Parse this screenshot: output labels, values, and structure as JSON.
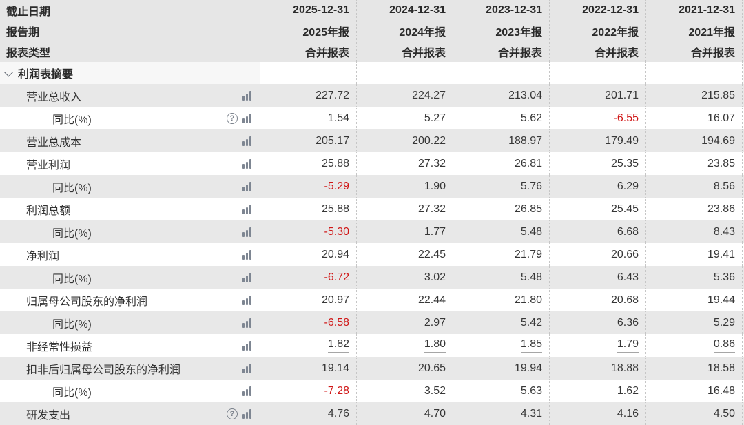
{
  "header": {
    "field_labels": [
      "截止日期",
      "报告期",
      "报表类型"
    ],
    "columns": [
      {
        "date": "2025-12-31",
        "period": "2025年报",
        "report_type": "合并报表"
      },
      {
        "date": "2024-12-31",
        "period": "2024年报",
        "report_type": "合并报表"
      },
      {
        "date": "2023-12-31",
        "period": "2023年报",
        "report_type": "合并报表"
      },
      {
        "date": "2022-12-31",
        "period": "2022年报",
        "report_type": "合并报表"
      },
      {
        "date": "2021-12-31",
        "period": "2021年报",
        "report_type": "合并报表"
      }
    ]
  },
  "section": {
    "title": "利润表摘要"
  },
  "icons": {
    "help_glyph": "?",
    "chart_icon": "bar-chart-icon",
    "collapse_icon": "chevron-down-icon"
  },
  "colors": {
    "negative_red": "#d01616",
    "stripe_gray": "#e8e8e8",
    "header_gray": "#e6e6e6",
    "section_bg": "#f7f7f7",
    "icon_gray": "#7e8692"
  },
  "rows": [
    {
      "label": "营业总收入",
      "indent": 1,
      "has_help": false,
      "has_chart": true,
      "underline": false,
      "values": [
        "227.72",
        "224.27",
        "213.04",
        "201.71",
        "215.85"
      ]
    },
    {
      "label": "同比(%)",
      "indent": 2,
      "has_help": true,
      "has_chart": true,
      "underline": false,
      "values": [
        "1.54",
        "5.27",
        "5.62",
        "-6.55",
        "16.07"
      ]
    },
    {
      "label": "营业总成本",
      "indent": 1,
      "has_help": false,
      "has_chart": true,
      "underline": false,
      "values": [
        "205.17",
        "200.22",
        "188.97",
        "179.49",
        "194.69"
      ]
    },
    {
      "label": "营业利润",
      "indent": 1,
      "has_help": false,
      "has_chart": true,
      "underline": false,
      "values": [
        "25.88",
        "27.32",
        "26.81",
        "25.35",
        "23.85"
      ]
    },
    {
      "label": "同比(%)",
      "indent": 2,
      "has_help": false,
      "has_chart": true,
      "underline": false,
      "values": [
        "-5.29",
        "1.90",
        "5.76",
        "6.29",
        "8.56"
      ]
    },
    {
      "label": "利润总额",
      "indent": 1,
      "has_help": false,
      "has_chart": true,
      "underline": false,
      "values": [
        "25.88",
        "27.32",
        "26.85",
        "25.45",
        "23.86"
      ]
    },
    {
      "label": "同比(%)",
      "indent": 2,
      "has_help": false,
      "has_chart": true,
      "underline": false,
      "values": [
        "-5.30",
        "1.77",
        "5.48",
        "6.68",
        "8.43"
      ]
    },
    {
      "label": "净利润",
      "indent": 1,
      "has_help": false,
      "has_chart": true,
      "underline": false,
      "values": [
        "20.94",
        "22.45",
        "21.79",
        "20.66",
        "19.41"
      ]
    },
    {
      "label": "同比(%)",
      "indent": 2,
      "has_help": false,
      "has_chart": true,
      "underline": false,
      "values": [
        "-6.72",
        "3.02",
        "5.48",
        "6.43",
        "5.36"
      ]
    },
    {
      "label": "归属母公司股东的净利润",
      "indent": 1,
      "has_help": false,
      "has_chart": true,
      "underline": false,
      "values": [
        "20.97",
        "22.44",
        "21.80",
        "20.68",
        "19.44"
      ]
    },
    {
      "label": "同比(%)",
      "indent": 2,
      "has_help": false,
      "has_chart": true,
      "underline": false,
      "values": [
        "-6.58",
        "2.97",
        "5.42",
        "6.36",
        "5.29"
      ]
    },
    {
      "label": "非经常性损益",
      "indent": 1,
      "has_help": false,
      "has_chart": true,
      "underline": true,
      "values": [
        "1.82",
        "1.80",
        "1.85",
        "1.79",
        "0.86"
      ]
    },
    {
      "label": "扣非后归属母公司股东的净利润",
      "indent": 1,
      "has_help": false,
      "has_chart": true,
      "underline": false,
      "values": [
        "19.14",
        "20.65",
        "19.94",
        "18.88",
        "18.58"
      ]
    },
    {
      "label": "同比(%)",
      "indent": 2,
      "has_help": false,
      "has_chart": true,
      "underline": false,
      "values": [
        "-7.28",
        "3.52",
        "5.63",
        "1.62",
        "16.48"
      ]
    },
    {
      "label": "研发支出",
      "indent": 1,
      "has_help": true,
      "has_chart": true,
      "underline": false,
      "values": [
        "4.76",
        "4.70",
        "4.31",
        "4.16",
        "4.50"
      ]
    }
  ]
}
